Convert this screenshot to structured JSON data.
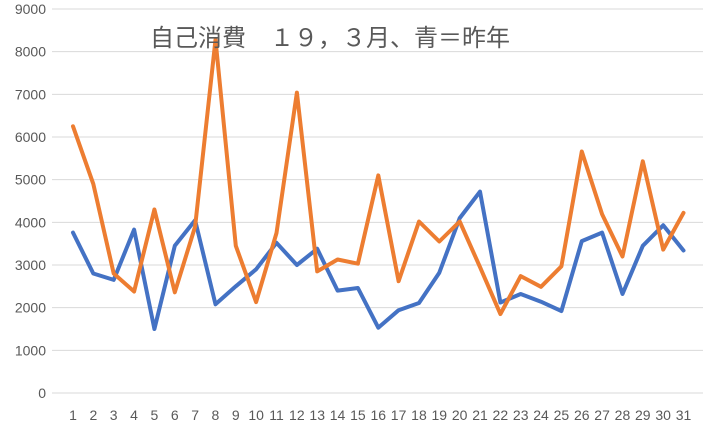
{
  "chart_data": {
    "type": "line",
    "title": "自己消費　１９，３月、青＝昨年",
    "xlabel": "",
    "ylabel": "",
    "categories": [
      "1",
      "2",
      "3",
      "4",
      "5",
      "6",
      "7",
      "8",
      "9",
      "10",
      "11",
      "12",
      "13",
      "14",
      "15",
      "16",
      "17",
      "18",
      "19",
      "20",
      "21",
      "22",
      "23",
      "24",
      "25",
      "26",
      "27",
      "28",
      "29",
      "30",
      "31"
    ],
    "ylim": [
      0,
      9000
    ],
    "yticks": [
      0,
      1000,
      2000,
      3000,
      4000,
      5000,
      6000,
      7000,
      8000,
      9000
    ],
    "grid": true,
    "legend": "none",
    "series": [
      {
        "color": "#4472c4",
        "values": [
          3760,
          2800,
          2650,
          3830,
          1500,
          3450,
          4050,
          2080,
          2500,
          2900,
          3520,
          3000,
          3380,
          2400,
          2460,
          1530,
          1940,
          2110,
          2820,
          4100,
          4720,
          2120,
          2320,
          2140,
          1920,
          3560,
          3760,
          2320,
          3450,
          3930,
          3340
        ]
      },
      {
        "color": "#ed7d31",
        "values": [
          6250,
          4900,
          2800,
          2380,
          4300,
          2360,
          3900,
          8280,
          3450,
          2130,
          3750,
          7040,
          2850,
          3130,
          3030,
          5100,
          2620,
          4020,
          3550,
          4020,
          2950,
          1850,
          2740,
          2490,
          2970,
          5660,
          4190,
          3200,
          5430,
          3360,
          4220
        ]
      }
    ]
  }
}
